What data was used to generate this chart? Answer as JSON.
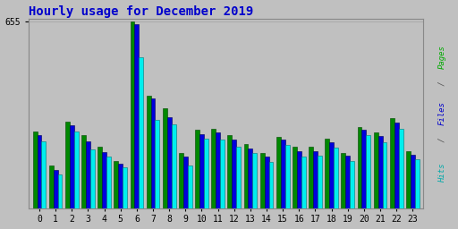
{
  "title": "Hourly usage for December 2019",
  "title_color": "#0000cc",
  "title_fontsize": 10,
  "hours": [
    0,
    1,
    2,
    3,
    4,
    5,
    6,
    7,
    8,
    9,
    10,
    11,
    12,
    13,
    14,
    15,
    16,
    17,
    18,
    19,
    20,
    21,
    22,
    23
  ],
  "pages": [
    270,
    150,
    305,
    255,
    215,
    165,
    655,
    395,
    350,
    195,
    275,
    280,
    255,
    225,
    195,
    250,
    215,
    215,
    245,
    195,
    285,
    265,
    315,
    200
  ],
  "files": [
    255,
    135,
    290,
    235,
    198,
    155,
    645,
    385,
    320,
    180,
    260,
    265,
    240,
    210,
    180,
    240,
    200,
    200,
    230,
    185,
    275,
    252,
    300,
    188
  ],
  "hits": [
    235,
    120,
    270,
    205,
    182,
    143,
    530,
    310,
    295,
    150,
    245,
    240,
    215,
    195,
    163,
    222,
    182,
    185,
    212,
    165,
    258,
    232,
    278,
    172
  ],
  "pages_color": "#008800",
  "files_color": "#0000dd",
  "hits_color": "#00eeee",
  "bg_color": "#c0c0c0",
  "plot_bg_color": "#c0c0c0",
  "ymax": 655,
  "bar_width": 0.27,
  "xlabel_fontsize": 7,
  "ylabel_fontsize": 7
}
